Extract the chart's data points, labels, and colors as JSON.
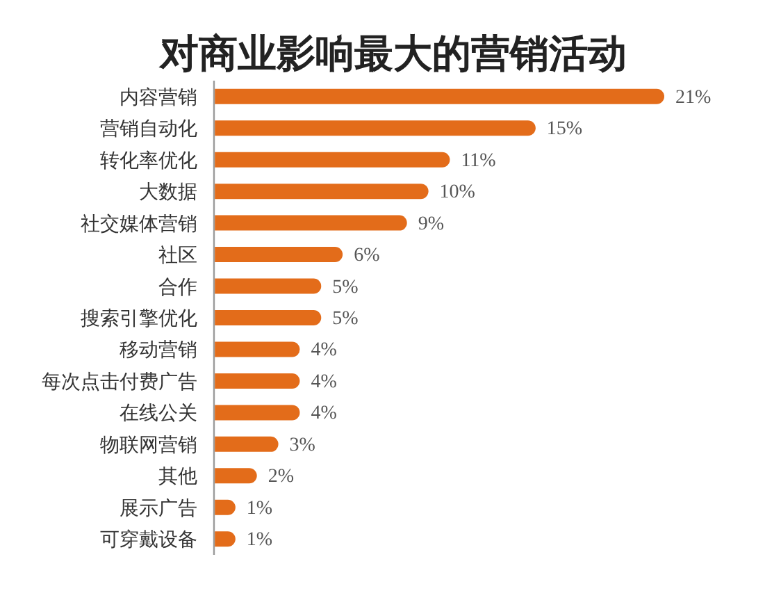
{
  "chart_data": {
    "type": "bar",
    "orientation": "horizontal",
    "title": "对商业影响最大的营销活动",
    "categories": [
      "内容营销",
      "营销自动化",
      "转化率优化",
      "大数据",
      "社交媒体营销",
      "社区",
      "合作",
      "搜索引擎优化",
      "移动营销",
      "每次点击付费广告",
      "在线公关",
      "物联网营销",
      "其他",
      "展示广告",
      "可穿戴设备"
    ],
    "values": [
      21,
      15,
      11,
      10,
      9,
      6,
      5,
      5,
      4,
      4,
      4,
      3,
      2,
      1,
      1
    ],
    "value_labels": [
      "21%",
      "15%",
      "11%",
      "10%",
      "9%",
      "6%",
      "5%",
      "5%",
      "4%",
      "4%",
      "4%",
      "3%",
      "2%",
      "1%",
      "1%"
    ],
    "color": "#e36c1a"
  }
}
